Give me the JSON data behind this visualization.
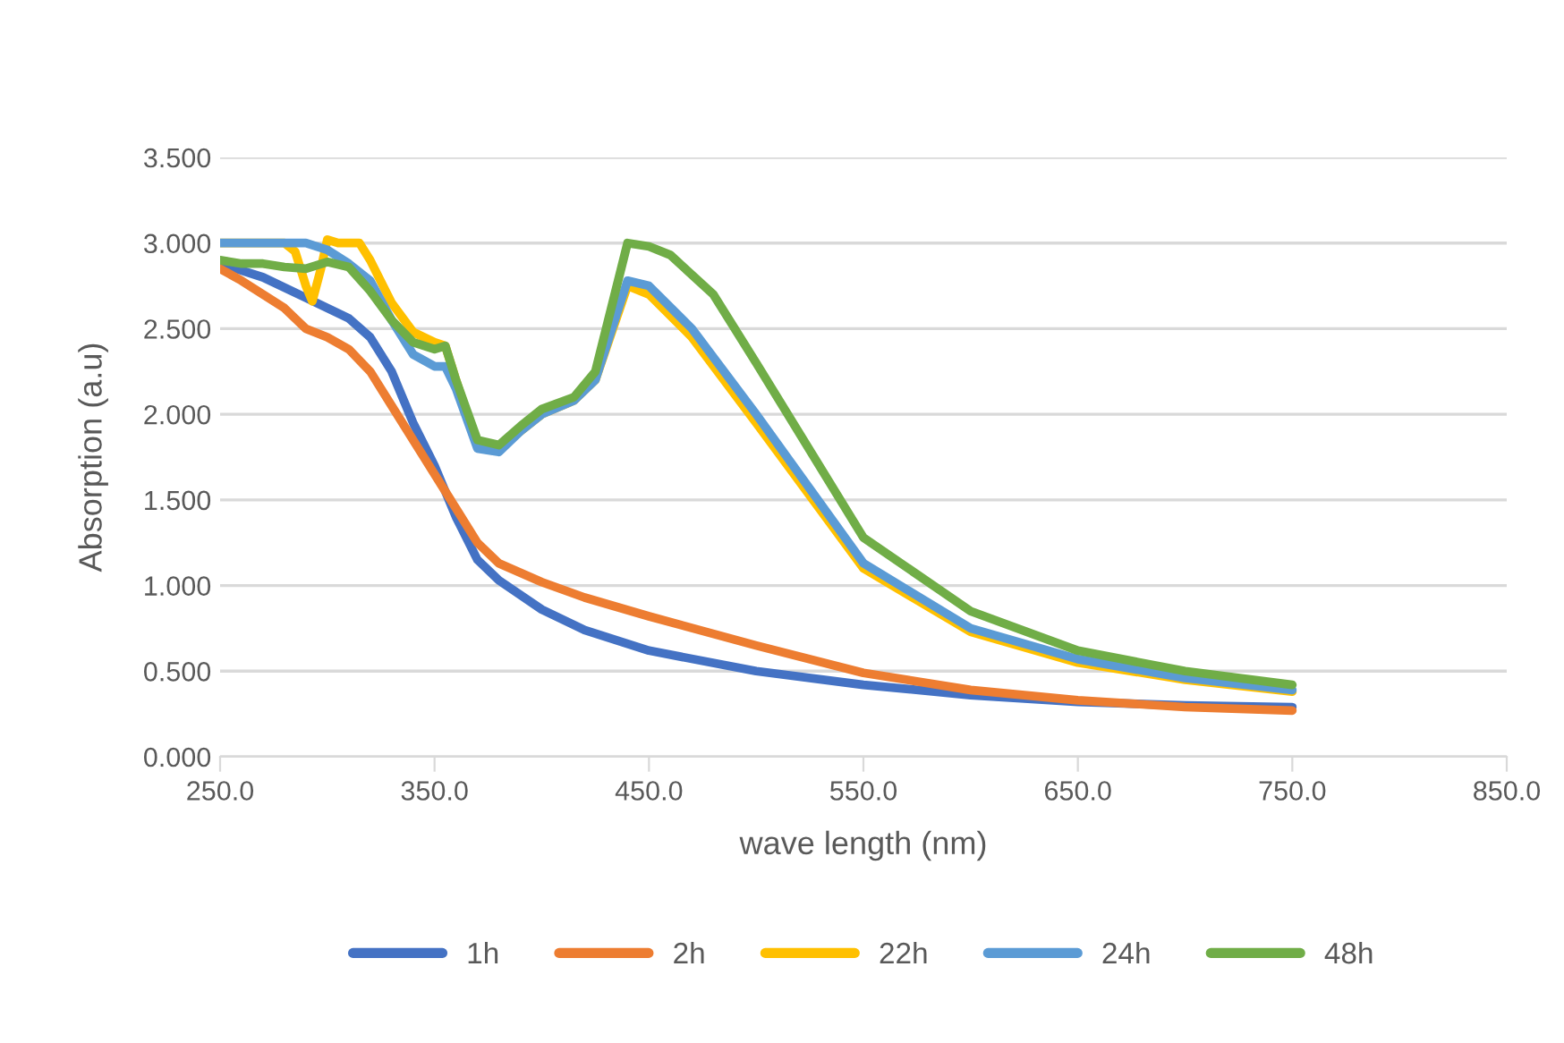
{
  "chart_data": {
    "type": "line",
    "xlabel": "wave length (nm)",
    "ylabel": "Absorption (a.u)",
    "xlim": [
      250,
      850
    ],
    "ylim": [
      0,
      3.5
    ],
    "xticks": [
      {
        "value": 250,
        "label": "250.0"
      },
      {
        "value": 350,
        "label": "350.0"
      },
      {
        "value": 450,
        "label": "450.0"
      },
      {
        "value": 550,
        "label": "550.0"
      },
      {
        "value": 650,
        "label": "650.0"
      },
      {
        "value": 750,
        "label": "750.0"
      },
      {
        "value": 850,
        "label": "850.0"
      }
    ],
    "yticks": [
      {
        "value": 0,
        "label": "0.000"
      },
      {
        "value": 0.5,
        "label": "0.500"
      },
      {
        "value": 1,
        "label": "1.000"
      },
      {
        "value": 1.5,
        "label": "1.500"
      },
      {
        "value": 2,
        "label": "2.000"
      },
      {
        "value": 2.5,
        "label": "2.500"
      },
      {
        "value": 3,
        "label": "3.000"
      },
      {
        "value": 3.5,
        "label": "3.500"
      }
    ],
    "grid": "y",
    "legend": "bottom",
    "marker": "none",
    "line_style": "solid",
    "series": [
      {
        "name": "1h",
        "color": "#4472c4",
        "x": [
          250,
          270,
          290,
          300,
          310,
          320,
          330,
          340,
          350,
          360,
          370,
          380,
          400,
          420,
          450,
          500,
          550,
          600,
          650,
          700,
          750
        ],
        "values": [
          2.88,
          2.8,
          2.68,
          2.62,
          2.56,
          2.45,
          2.25,
          1.95,
          1.7,
          1.4,
          1.15,
          1.03,
          0.86,
          0.74,
          0.62,
          0.5,
          0.42,
          0.36,
          0.32,
          0.3,
          0.29
        ]
      },
      {
        "name": "2h",
        "color": "#ed7d31",
        "x": [
          250,
          260,
          270,
          280,
          290,
          300,
          310,
          320,
          330,
          340,
          350,
          360,
          370,
          380,
          400,
          420,
          450,
          500,
          550,
          600,
          650,
          700,
          750
        ],
        "values": [
          2.85,
          2.78,
          2.7,
          2.62,
          2.5,
          2.45,
          2.38,
          2.25,
          2.05,
          1.85,
          1.65,
          1.45,
          1.25,
          1.13,
          1.02,
          0.93,
          0.82,
          0.65,
          0.49,
          0.39,
          0.33,
          0.29,
          0.27
        ]
      },
      {
        "name": "22h",
        "color": "#ffc000",
        "x": [
          250,
          280,
          285,
          290,
          293,
          297,
          300,
          305,
          315,
          320,
          330,
          340,
          350,
          355,
          360,
          370,
          380,
          390,
          400,
          415,
          425,
          440,
          450,
          470,
          500,
          550,
          600,
          650,
          700,
          750
        ],
        "values": [
          3.0,
          3.0,
          2.95,
          2.75,
          2.66,
          2.85,
          3.02,
          3.0,
          3.0,
          2.9,
          2.65,
          2.48,
          2.42,
          2.4,
          2.2,
          1.82,
          1.8,
          1.9,
          2.0,
          2.08,
          2.2,
          2.75,
          2.7,
          2.45,
          1.95,
          1.1,
          0.73,
          0.55,
          0.45,
          0.38
        ]
      },
      {
        "name": "24h",
        "color": "#5b9bd5",
        "x": [
          250,
          290,
          300,
          310,
          320,
          330,
          340,
          350,
          355,
          360,
          370,
          380,
          390,
          400,
          415,
          425,
          440,
          450,
          470,
          500,
          550,
          600,
          650,
          700,
          750
        ],
        "values": [
          3.0,
          3.0,
          2.96,
          2.88,
          2.78,
          2.55,
          2.35,
          2.28,
          2.28,
          2.15,
          1.8,
          1.78,
          1.9,
          2.0,
          2.08,
          2.2,
          2.78,
          2.75,
          2.5,
          2.0,
          1.13,
          0.75,
          0.57,
          0.46,
          0.39
        ]
      },
      {
        "name": "48h",
        "color": "#70ad47",
        "x": [
          250,
          260,
          270,
          280,
          290,
          300,
          310,
          320,
          330,
          340,
          350,
          355,
          360,
          370,
          380,
          390,
          400,
          415,
          425,
          440,
          450,
          460,
          480,
          500,
          550,
          600,
          650,
          700,
          750
        ],
        "values": [
          2.9,
          2.88,
          2.88,
          2.86,
          2.85,
          2.89,
          2.86,
          2.72,
          2.55,
          2.42,
          2.38,
          2.4,
          2.2,
          1.85,
          1.82,
          1.93,
          2.03,
          2.1,
          2.25,
          3.0,
          2.98,
          2.93,
          2.7,
          2.3,
          1.28,
          0.85,
          0.62,
          0.5,
          0.42
        ]
      }
    ]
  }
}
